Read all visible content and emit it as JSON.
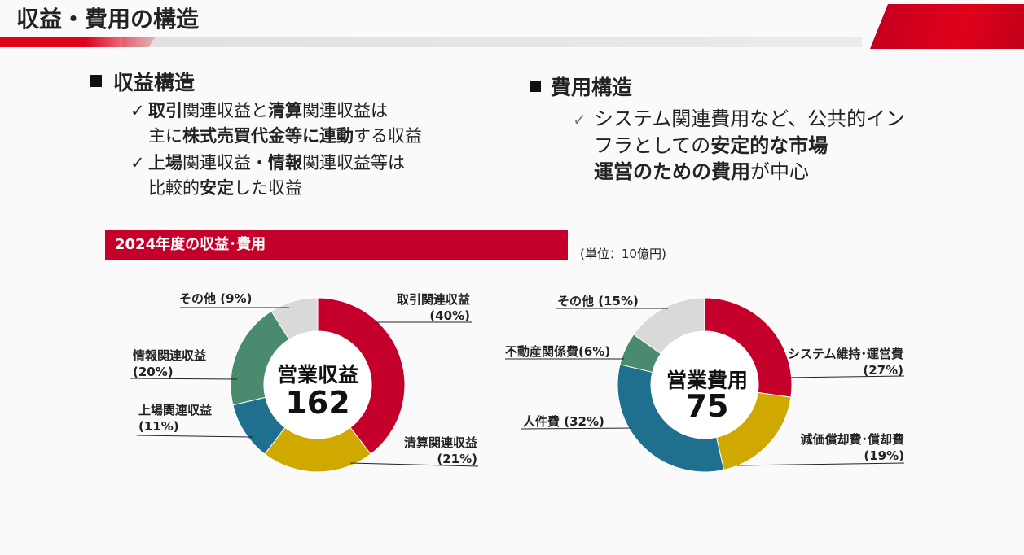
{
  "header": {
    "title": "収益・費用の構造"
  },
  "revenue_section": {
    "heading": "収益構造",
    "b1_line1_bold1": "取引",
    "b1_line1_text1": "関連収益と",
    "b1_line1_bold2": "清算",
    "b1_line1_text2": "関連収益は",
    "b1_line2_text1": "主に",
    "b1_line2_bold1": "株式売買代金等に連動",
    "b1_line2_text2": "する収益",
    "b2_line1_bold1": "上場",
    "b2_line1_text1": "関連収益・",
    "b2_line1_bold2": "情報",
    "b2_line1_text2": "関連収益等は",
    "b2_line2_text1": "比較的",
    "b2_line2_bold1": "安定",
    "b2_line2_text2": "した収益",
    "check": "✓"
  },
  "cost_section": {
    "heading": "費用構造",
    "line1": "システム関連費用など、公共的イン",
    "line2_text": "フラとしての",
    "line2_bold": "安定的な市場",
    "line3_bold": "運営のための費用",
    "line3_text": "が中心",
    "check": "✓"
  },
  "year_bar": {
    "label": "2024年度の収益･費用"
  },
  "unit": "(単位：10億円)",
  "chart_data": [
    {
      "type": "pie",
      "center_title": "営業収益",
      "center_value": "162",
      "slices": [
        {
          "name": "取引関連収益",
          "pct_label": "(40%)",
          "value": 40,
          "color": "#c4002a"
        },
        {
          "name": "清算関連収益",
          "pct_label": "(21%)",
          "value": 21,
          "color": "#d0a900"
        },
        {
          "name": "上場関連収益",
          "pct_label": "(11%)",
          "value": 11,
          "color": "#1f6f8f"
        },
        {
          "name": "情報関連収益",
          "pct_label": "(20%)",
          "value": 20,
          "color": "#4a8a6e"
        },
        {
          "name": "その他",
          "pct_label": "(9%)",
          "value": 9,
          "color": "#d9d9d9"
        }
      ]
    },
    {
      "type": "pie",
      "center_title": "営業費用",
      "center_value": "75",
      "slices": [
        {
          "name": "システム維持･運営費",
          "pct_label": "(27%)",
          "value": 27,
          "color": "#c4002a"
        },
        {
          "name": "減価償却費･償却費",
          "pct_label": "(19%)",
          "value": 19,
          "color": "#d0a900"
        },
        {
          "name": "人件費",
          "pct_label": "(32%)",
          "value": 32,
          "color": "#1f6f8f"
        },
        {
          "name": "不動産関係費",
          "pct_label": "(6%)",
          "value": 6,
          "color": "#4a8a6e"
        },
        {
          "name": "その他",
          "pct_label": "(15%)",
          "value": 15,
          "color": "#d9d9d9"
        }
      ]
    }
  ]
}
